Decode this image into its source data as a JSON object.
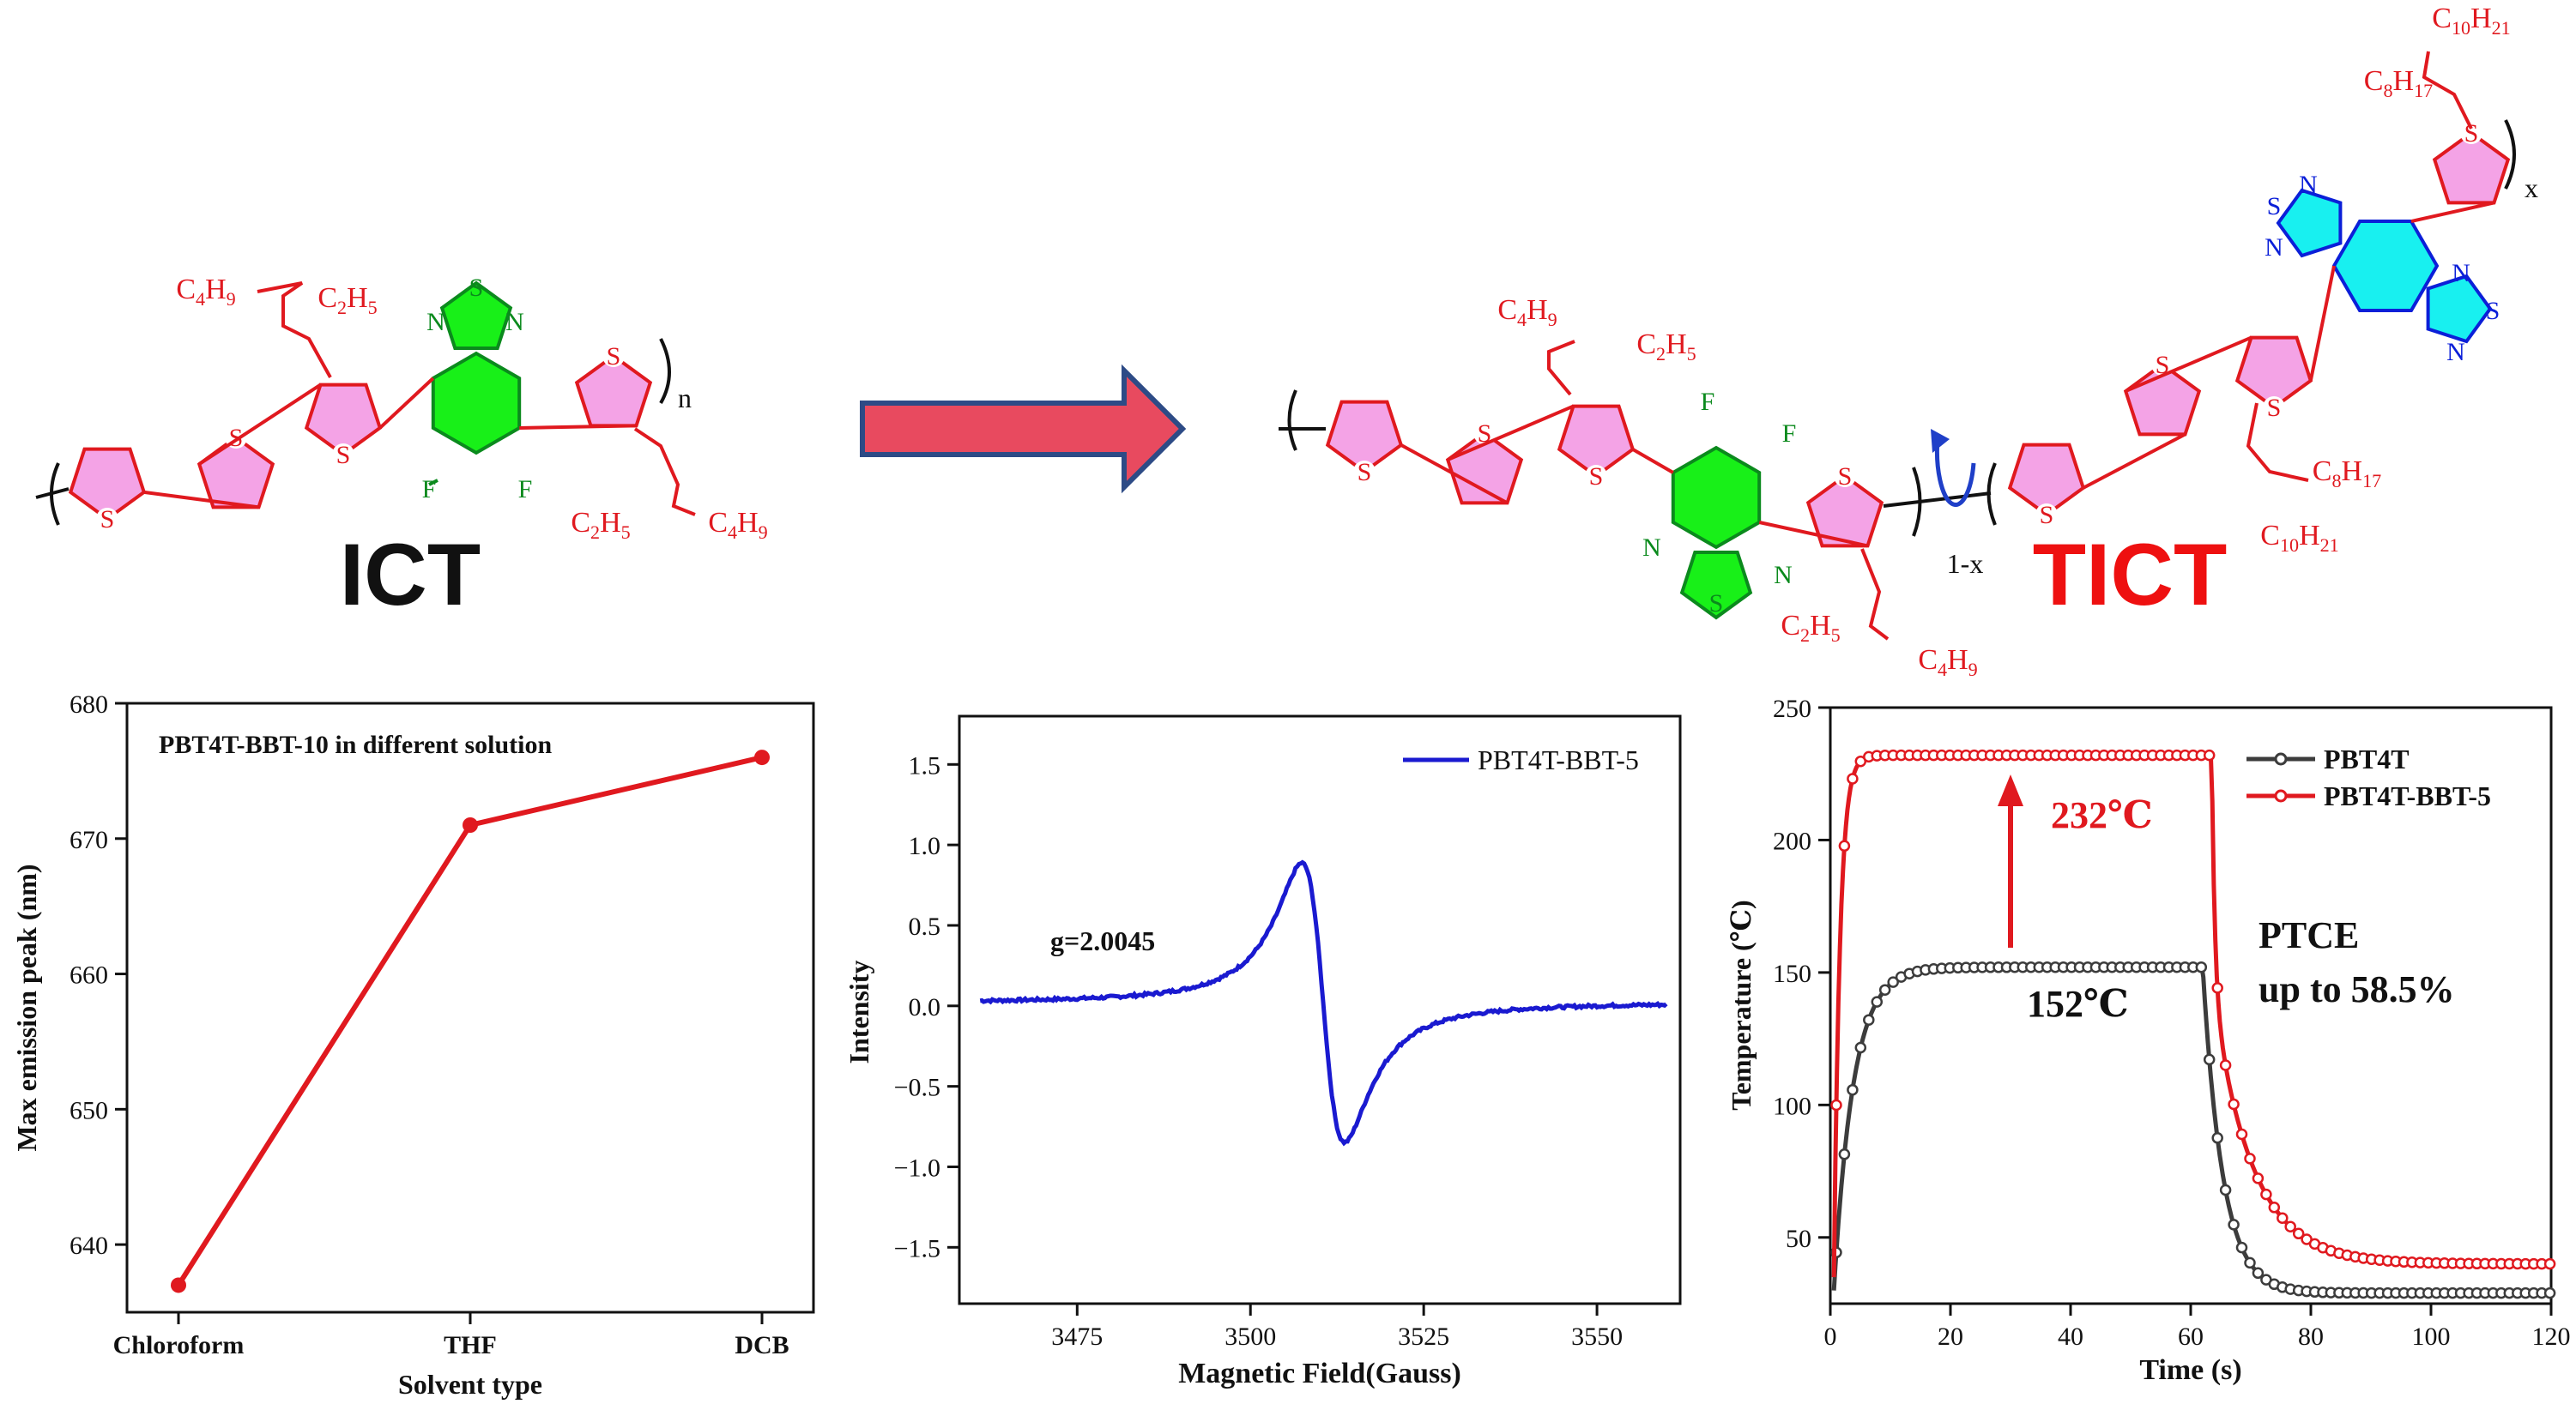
{
  "scheme": {
    "left_label": "ICT",
    "right_label": "TICT",
    "subscript_n": "n",
    "subscript_x": "x",
    "subscript_1mx": "1-x",
    "atom_S": "S",
    "atom_N": "N",
    "atom_F": "F",
    "sub_10": "10",
    "sub_21": "21",
    "sub_8": "8",
    "sub_17": "17",
    "sub_4": "4",
    "sub_9": "9",
    "sub_2": "2",
    "sub_5": "5",
    "chain_C": "C",
    "chain_H": "H",
    "colors": {
      "thiophene_fill": "#f4a3e6",
      "thiophene_stroke": "#e0191f",
      "btz_fill": "#18f018",
      "bbt_fill": "#18f0f0",
      "arrow_fill": "#e84a5f",
      "arrow_stroke": "#2d4b86",
      "rot_arrow": "#1f3fc8"
    }
  },
  "chart_data": [
    {
      "type": "line",
      "annotation": "PBT4T-BBT-10 in different solution",
      "categories": [
        "Chloroform",
        "THF",
        "DCB"
      ],
      "values": [
        637,
        671,
        676
      ],
      "xlabel": "Solvent type",
      "ylabel": "Max emission peak (nm)",
      "ylim": [
        635,
        680
      ],
      "yticks": [
        "640",
        "650",
        "660",
        "670",
        "680"
      ],
      "ytick_values": [
        640,
        650,
        660,
        670,
        680
      ],
      "color": "#e0191f",
      "grid": false
    },
    {
      "type": "line",
      "series": [
        {
          "name": "PBT4T-BBT-5",
          "color": "#1a1ad0"
        }
      ],
      "annotation": "g=2.0045",
      "xlabel": "Magnetic Field(Gauss)",
      "ylabel": "Intensity",
      "xlim": [
        3458,
        3562
      ],
      "ylim": [
        -1.85,
        1.8
      ],
      "xticks": [
        "3475",
        "3500",
        "3525",
        "3550"
      ],
      "xtick_values": [
        3475,
        3500,
        3525,
        3550
      ],
      "yticks": [
        "−1.5",
        "−1.0",
        "−0.5",
        "0.0",
        "0.5",
        "1.0",
        "1.5"
      ],
      "ytick_values": [
        -1.5,
        -1.0,
        -0.5,
        0.0,
        0.5,
        1.0,
        1.5
      ],
      "x_range": [
        3461,
        3560
      ],
      "peak_center": 3510.5,
      "peak_amplitude": 1.33,
      "baseline": 0.02,
      "legend": "top-right",
      "grid": false
    },
    {
      "type": "line",
      "series": [
        {
          "name": "PBT4T",
          "color": "#3c3c3c",
          "plateau": 152,
          "start": 30,
          "final": 29,
          "off_time": 62
        },
        {
          "name": "PBT4T-BBT-5",
          "color": "#e0191f",
          "plateau": 232,
          "start": 35,
          "final": 40,
          "off_time": 63.5
        }
      ],
      "annotations": [
        "232℃",
        "152℃",
        "PTCE",
        "up to 58.5%"
      ],
      "xlabel": "Time (s)",
      "ylabel": "Temperature (℃)",
      "xlim": [
        0,
        120
      ],
      "ylim": [
        25,
        250
      ],
      "xticks": [
        "0",
        "20",
        "40",
        "60",
        "80",
        "100",
        "120"
      ],
      "xtick_values": [
        0,
        20,
        40,
        60,
        80,
        100,
        120
      ],
      "yticks": [
        "50",
        "100",
        "150",
        "200",
        "250"
      ],
      "ytick_values": [
        50,
        100,
        150,
        200,
        250
      ],
      "legend": "top-right",
      "grid": false
    }
  ]
}
